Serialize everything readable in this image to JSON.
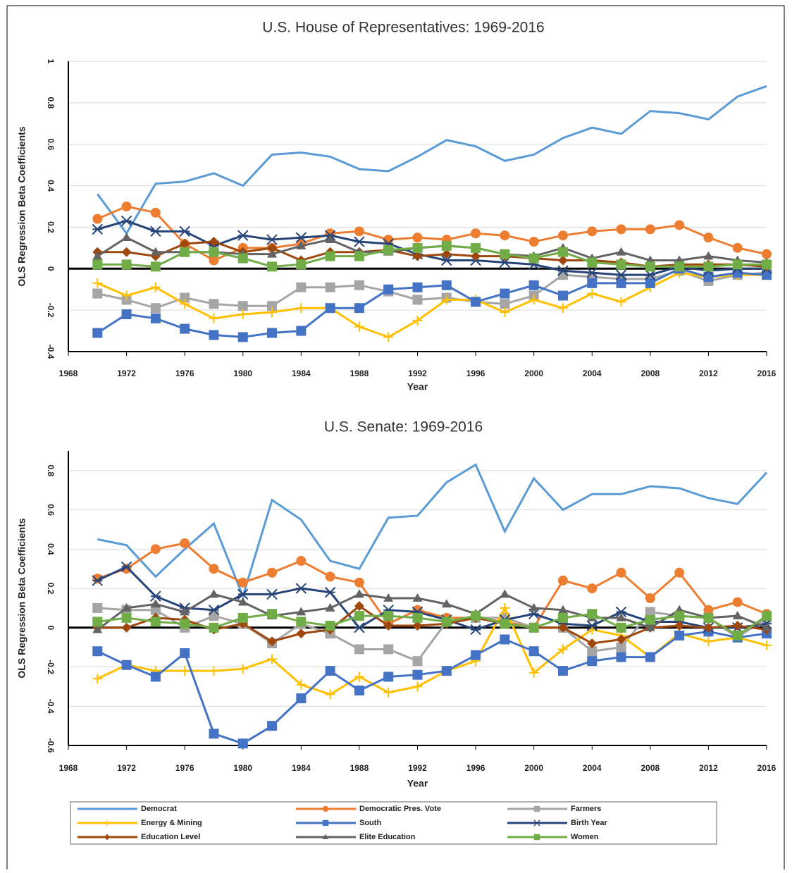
{
  "chart_data": [
    {
      "type": "line",
      "title": "U.S. House of Representatives: 1969-2016",
      "x_label": "Year",
      "y_label": "OLS Regression Beta Coefficients",
      "x": [
        1970,
        1972,
        1974,
        1976,
        1978,
        1980,
        1982,
        1984,
        1986,
        1988,
        1990,
        1992,
        1994,
        1996,
        1998,
        2000,
        2002,
        2004,
        2006,
        2008,
        2010,
        2012,
        2014,
        2016
      ],
      "xlim": [
        1968,
        2016
      ],
      "xticks": [
        1968,
        1972,
        1976,
        1980,
        1984,
        1988,
        1992,
        1996,
        2000,
        2004,
        2008,
        2012,
        2016
      ],
      "ylim": [
        -0.4,
        1
      ],
      "yticks": [
        -0.4,
        -0.2,
        0,
        0.2,
        0.4,
        0.6,
        0.8,
        1
      ],
      "grid": true,
      "series": [
        {
          "color": "#5b9bd5",
          "marker": "none",
          "values": [
            0.36,
            0.17,
            0.41,
            0.42,
            0.46,
            0.4,
            0.55,
            0.56,
            0.54,
            0.48,
            0.47,
            0.54,
            0.62,
            0.59,
            0.52,
            0.55,
            0.63,
            0.68,
            0.65,
            0.76,
            0.75,
            0.72,
            0.83,
            0.88
          ]
        },
        {
          "color": "#ed7d31",
          "marker": "circle",
          "values": [
            0.24,
            0.3,
            0.27,
            0.12,
            0.04,
            0.1,
            0.1,
            0.12,
            0.17,
            0.18,
            0.14,
            0.15,
            0.14,
            0.17,
            0.16,
            0.13,
            0.16,
            0.18,
            0.19,
            0.19,
            0.21,
            0.15,
            0.1,
            0.07
          ]
        },
        {
          "color": "#a5a5a5",
          "marker": "square",
          "values": [
            -0.12,
            -0.15,
            -0.19,
            -0.14,
            -0.17,
            -0.18,
            -0.18,
            -0.09,
            -0.09,
            -0.08,
            -0.11,
            -0.15,
            -0.14,
            -0.16,
            -0.17,
            -0.13,
            -0.03,
            -0.04,
            -0.05,
            -0.05,
            -0.01,
            -0.06,
            -0.03,
            -0.02
          ]
        },
        {
          "color": "#ffc000",
          "marker": "plus",
          "values": [
            -0.07,
            -0.13,
            -0.09,
            -0.17,
            -0.24,
            -0.22,
            -0.21,
            -0.19,
            -0.19,
            -0.28,
            -0.33,
            -0.25,
            -0.15,
            -0.15,
            -0.21,
            -0.15,
            -0.19,
            -0.12,
            -0.16,
            -0.09,
            -0.02,
            -0.04,
            -0.03,
            -0.03
          ]
        },
        {
          "color": "#4472c4",
          "marker": "square",
          "values": [
            -0.31,
            -0.22,
            -0.24,
            -0.29,
            -0.32,
            -0.33,
            -0.31,
            -0.3,
            -0.19,
            -0.19,
            -0.1,
            -0.09,
            -0.08,
            -0.16,
            -0.12,
            -0.08,
            -0.13,
            -0.07,
            -0.07,
            -0.07,
            0.0,
            -0.04,
            -0.02,
            -0.03
          ]
        },
        {
          "color": "#264478",
          "marker": "star",
          "values": [
            0.19,
            0.23,
            0.18,
            0.18,
            0.11,
            0.16,
            0.14,
            0.15,
            0.16,
            0.13,
            0.12,
            0.07,
            0.04,
            0.04,
            0.03,
            0.02,
            -0.01,
            -0.02,
            -0.03,
            -0.03,
            0.01,
            -0.01,
            0.0,
            0.0
          ]
        },
        {
          "color": "#9e480e",
          "marker": "diamond",
          "values": [
            0.08,
            0.08,
            0.06,
            0.12,
            0.13,
            0.08,
            0.1,
            0.04,
            0.08,
            0.08,
            0.09,
            0.06,
            0.07,
            0.06,
            0.06,
            0.05,
            0.04,
            0.04,
            0.03,
            0.01,
            0.02,
            0.02,
            0.02,
            0.01
          ]
        },
        {
          "color": "#636363",
          "marker": "triangle",
          "values": [
            0.06,
            0.15,
            0.08,
            0.08,
            0.08,
            0.07,
            0.07,
            0.11,
            0.14,
            0.08,
            0.08,
            0.1,
            0.11,
            0.1,
            0.07,
            0.06,
            0.1,
            0.05,
            0.08,
            0.04,
            0.04,
            0.06,
            0.04,
            0.03
          ]
        },
        {
          "color": "#70ad47",
          "marker": "square",
          "values": [
            0.02,
            0.02,
            0.01,
            0.08,
            0.08,
            0.05,
            0.01,
            0.02,
            0.06,
            0.06,
            0.09,
            0.1,
            0.11,
            0.1,
            0.07,
            0.05,
            0.08,
            0.03,
            0.02,
            0.01,
            0.01,
            0.01,
            0.02,
            0.02
          ]
        }
      ]
    },
    {
      "type": "line",
      "title": "U.S. Senate: 1969-2016",
      "x_label": "Year",
      "y_label": "OLS Regression Beta Coefficients",
      "x": [
        1970,
        1972,
        1974,
        1976,
        1978,
        1980,
        1982,
        1984,
        1986,
        1988,
        1990,
        1992,
        1994,
        1996,
        1998,
        2000,
        2002,
        2004,
        2006,
        2008,
        2010,
        2012,
        2014,
        2016
      ],
      "xlim": [
        1968,
        2016
      ],
      "xticks": [
        1968,
        1972,
        1976,
        1980,
        1984,
        1988,
        1992,
        1996,
        2000,
        2004,
        2008,
        2012,
        2016
      ],
      "ylim": [
        -0.6,
        0.9
      ],
      "yticks": [
        -0.6,
        -0.4,
        -0.2,
        0,
        0.2,
        0.4,
        0.6,
        0.8
      ],
      "grid": true,
      "series": [
        {
          "name": "Democrat",
          "color": "#5b9bd5",
          "marker": "none",
          "values": [
            0.45,
            0.42,
            0.26,
            0.4,
            0.53,
            0.16,
            0.65,
            0.55,
            0.34,
            0.3,
            0.56,
            0.57,
            0.74,
            0.83,
            0.49,
            0.76,
            0.6,
            0.68,
            0.68,
            0.72,
            0.71,
            0.66,
            0.63,
            0.79
          ]
        },
        {
          "name": "Democratic Pres. Vote",
          "color": "#ed7d31",
          "marker": "circle",
          "values": [
            0.25,
            0.3,
            0.4,
            0.43,
            0.3,
            0.23,
            0.28,
            0.34,
            0.26,
            0.23,
            0.02,
            0.09,
            0.05,
            0.05,
            0.03,
            0.0,
            0.24,
            0.2,
            0.28,
            0.15,
            0.28,
            0.09,
            0.13,
            0.07
          ]
        },
        {
          "name": "Farmers",
          "color": "#a5a5a5",
          "marker": "square",
          "values": [
            0.1,
            0.09,
            0.09,
            0.0,
            0.06,
            0.02,
            -0.08,
            0.02,
            -0.03,
            -0.11,
            -0.11,
            -0.17,
            0.03,
            0.05,
            0.05,
            0.0,
            0.0,
            -0.12,
            -0.1,
            0.08,
            0.06,
            0.05,
            -0.05,
            0.05
          ]
        },
        {
          "name": "Energy & Mining",
          "color": "#ffc000",
          "marker": "plus",
          "values": [
            -0.26,
            -0.19,
            -0.22,
            -0.22,
            -0.22,
            -0.21,
            -0.16,
            -0.29,
            -0.34,
            -0.25,
            -0.33,
            -0.3,
            -0.22,
            -0.17,
            0.1,
            -0.23,
            -0.11,
            -0.01,
            -0.04,
            -0.15,
            -0.03,
            -0.07,
            -0.05,
            -0.09
          ]
        },
        {
          "name": "South",
          "color": "#4472c4",
          "marker": "square",
          "values": [
            -0.12,
            -0.19,
            -0.25,
            -0.13,
            -0.54,
            -0.59,
            -0.5,
            -0.36,
            -0.22,
            -0.32,
            -0.25,
            -0.24,
            -0.22,
            -0.14,
            -0.06,
            -0.12,
            -0.22,
            -0.17,
            -0.15,
            -0.15,
            -0.04,
            -0.02,
            -0.05,
            -0.03
          ]
        },
        {
          "name": "Birth Year",
          "color": "#264478",
          "marker": "star",
          "values": [
            0.24,
            0.31,
            0.16,
            0.1,
            0.09,
            0.17,
            0.17,
            0.2,
            0.18,
            0.0,
            0.09,
            0.08,
            0.04,
            -0.01,
            0.04,
            0.07,
            0.02,
            0.01,
            0.08,
            0.03,
            0.03,
            0.0,
            0.0,
            0.02
          ]
        },
        {
          "name": "Education Level",
          "color": "#9e480e",
          "marker": "diamond",
          "values": [
            0.0,
            0.0,
            0.05,
            0.04,
            -0.01,
            0.02,
            -0.07,
            -0.03,
            -0.01,
            0.11,
            0.01,
            0.01,
            0.02,
            0.05,
            0.02,
            0.0,
            0.0,
            -0.08,
            -0.06,
            0.0,
            0.01,
            0.0,
            0.01,
            -0.01
          ]
        },
        {
          "name": "Elite Education",
          "color": "#636363",
          "marker": "triangle",
          "values": [
            -0.01,
            0.1,
            0.12,
            0.08,
            0.17,
            0.13,
            0.06,
            0.08,
            0.1,
            0.17,
            0.15,
            0.15,
            0.12,
            0.07,
            0.17,
            0.1,
            0.09,
            0.05,
            0.05,
            0.0,
            0.09,
            0.05,
            0.06,
            0.0
          ]
        },
        {
          "name": "Women",
          "color": "#70ad47",
          "marker": "square",
          "values": [
            0.03,
            0.05,
            0.03,
            0.02,
            0.0,
            0.05,
            0.07,
            0.03,
            0.01,
            0.06,
            0.06,
            0.05,
            0.03,
            0.06,
            0.02,
            0.0,
            0.05,
            0.07,
            0.0,
            0.04,
            0.06,
            0.05,
            -0.04,
            0.06
          ]
        }
      ]
    }
  ]
}
